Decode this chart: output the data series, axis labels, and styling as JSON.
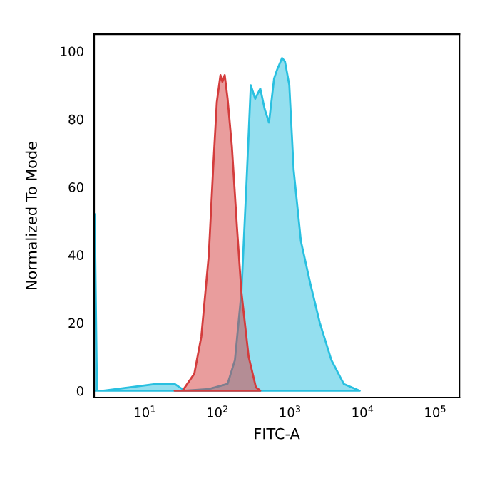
{
  "chart_data": {
    "type": "area",
    "xlabel": "FITC-A",
    "ylabel": "Normalized To Mode",
    "log": "x",
    "xlim": [
      2,
      215000
    ],
    "ylim": [
      -2,
      105
    ],
    "xticks": [
      {
        "value": 10,
        "label": "10$^{1}$"
      },
      {
        "value": 100,
        "label": "10$^{2}$"
      },
      {
        "value": 1000,
        "label": "10$^{3}$"
      },
      {
        "value": 10000,
        "label": "10$^{4}$"
      },
      {
        "value": 100000,
        "label": "10$^{5}$"
      }
    ],
    "yticks": [
      0,
      20,
      40,
      60,
      80,
      100
    ],
    "grid": false,
    "series": [
      {
        "color": "#29c0e0",
        "x": [
          2,
          2.04,
          2.19,
          2.7,
          6.3,
          14.5,
          25.7,
          35.5,
          76,
          138,
          174,
          214,
          251,
          288,
          331,
          389,
          447,
          513,
          603,
          661,
          776,
          851,
          977,
          1122,
          1413,
          1905,
          2570,
          3715,
          5495,
          9120
        ],
        "values": [
          52,
          52,
          0,
          0,
          1,
          2,
          2,
          0,
          0.5,
          2,
          9,
          29,
          61,
          90,
          86,
          89,
          83,
          79,
          92,
          94.5,
          98,
          97,
          90,
          65,
          44,
          31.5,
          20,
          9,
          2,
          0
        ]
      },
      {
        "color": "#d43c3c",
        "x": [
          25.7,
          33,
          48,
          60,
          76,
          87,
          98,
          110,
          117,
          126,
          138,
          158,
          186,
          214,
          269,
          339,
          389
        ],
        "values": [
          0,
          0,
          5,
          16,
          40,
          65,
          85,
          93,
          91,
          93,
          86,
          72,
          48,
          29,
          10,
          1,
          0
        ]
      }
    ]
  }
}
